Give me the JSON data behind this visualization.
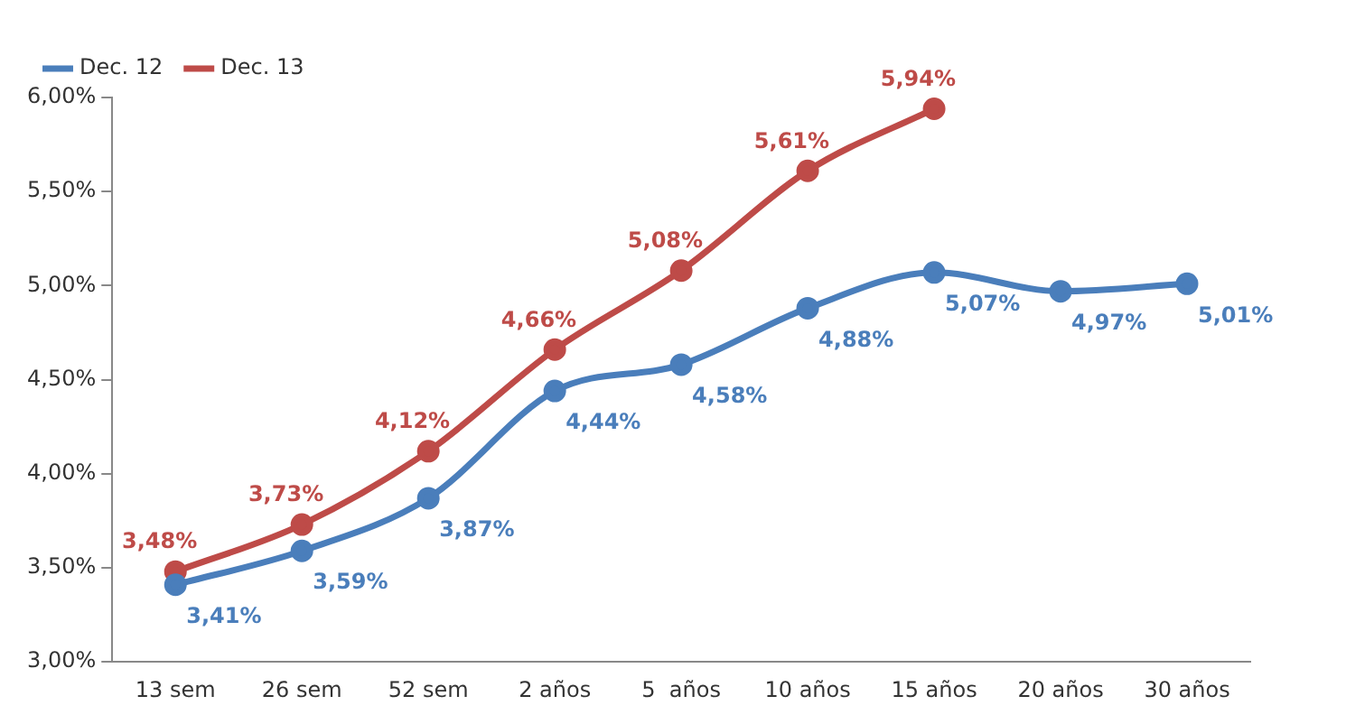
{
  "chart_data": {
    "type": "line",
    "categories": [
      "13 sem",
      "26 sem",
      "52 sem",
      "2 años",
      "5  años",
      "10 años",
      "15 años",
      "20 años",
      "30 años"
    ],
    "series": [
      {
        "name": "Dec. 12",
        "color": "#4a7ebb",
        "values": [
          3.41,
          3.59,
          3.87,
          4.44,
          4.58,
          4.88,
          5.07,
          4.97,
          5.01
        ],
        "value_labels": [
          "3,41%",
          "3,59%",
          "3,87%",
          "4,44%",
          "4,58%",
          "4,88%",
          "5,07%",
          "4,97%",
          "5,01%"
        ]
      },
      {
        "name": "Dec. 13",
        "color": "#be4b48",
        "values": [
          3.48,
          3.73,
          4.12,
          4.66,
          5.08,
          5.61,
          5.94,
          null,
          null
        ],
        "value_labels": [
          "3,48%",
          "3,73%",
          "4,12%",
          "4,66%",
          "5,08%",
          "5,61%",
          "5,94%",
          null,
          null
        ]
      }
    ],
    "ylim": [
      3,
      6
    ],
    "yticks": [
      {
        "value": 3,
        "label": "3,00%"
      },
      {
        "value": 3.5,
        "label": "3,50%"
      },
      {
        "value": 4,
        "label": "4,00%"
      },
      {
        "value": 4.5,
        "label": "4,50%"
      },
      {
        "value": 5,
        "label": "5,00%"
      },
      {
        "value": 5.5,
        "label": "5,50%"
      },
      {
        "value": 6,
        "label": "6,00%"
      }
    ],
    "grid": false,
    "legend": "top left",
    "marker": "circle",
    "line_style": "solid"
  }
}
